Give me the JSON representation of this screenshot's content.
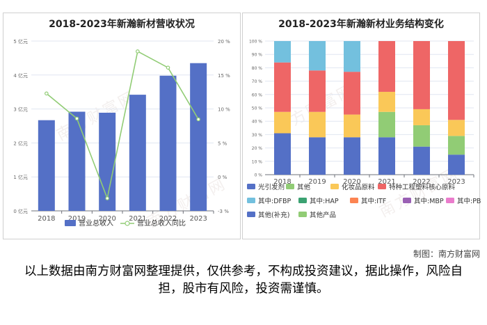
{
  "watermark": "南方财富网",
  "credit": "制图：南方财富网",
  "disclaimer": "以上数据由南方财富网整理提供，仅供参考，不构成投资建议，据此操作，风险自担，股市有风险，投资需谨慎。",
  "chart_data": [
    {
      "type": "bar",
      "title": "2018-2023年新瀚新材营收状况",
      "categories": [
        "2018",
        "2019",
        "2020",
        "2021",
        "2022",
        "2023"
      ],
      "series": [
        {
          "name": "营业总收入",
          "type": "bar",
          "axis": "left",
          "color": "#5470c6",
          "values": [
            2.67,
            2.92,
            2.89,
            3.42,
            3.98,
            4.35
          ]
        },
        {
          "name": "营业总收入同比",
          "type": "line",
          "axis": "right",
          "color": "#91cc75",
          "values": [
            12.9,
            9.5,
            -1.3,
            18.6,
            16.4,
            9.4
          ]
        }
      ],
      "left_axis": {
        "ylim": [
          0,
          5
        ],
        "ticks": [
          "0 亿元",
          "1 亿元",
          "2 亿元",
          "3 亿元",
          "4 亿元",
          "5 亿元"
        ]
      },
      "right_axis": {
        "ylim": [
          -3,
          20
        ],
        "ticks": [
          "-3 %",
          "0 %",
          "5 %",
          "10 %",
          "15 %",
          "20 %"
        ]
      },
      "legend": [
        {
          "label": "营业总收入",
          "color": "#5470c6",
          "kind": "bar"
        },
        {
          "label": "营业总收入同比",
          "color": "#91cc75",
          "kind": "line"
        }
      ]
    },
    {
      "type": "bar",
      "stacked": true,
      "title": "2018-2023年新瀚新材业务结构变化",
      "categories": [
        "2018",
        "2019",
        "2020",
        "2021",
        "2022",
        "2023"
      ],
      "ylim": [
        0,
        100
      ],
      "ticks": [
        "0 %",
        "10 %",
        "20 %",
        "30 %",
        "40 %",
        "50 %",
        "60 %",
        "70 %",
        "80 %",
        "90 %",
        "100 %"
      ],
      "series": [
        {
          "name": "光引发剂",
          "color": "#5470c6",
          "values": [
            31,
            28,
            28,
            28,
            21,
            15
          ]
        },
        {
          "name": "其他",
          "color": "#91cc75",
          "values": [
            0,
            0,
            0,
            19,
            16,
            14
          ]
        },
        {
          "name": "化妆品原料",
          "color": "#fac858",
          "values": [
            16,
            19,
            17,
            15,
            12,
            12
          ]
        },
        {
          "name": "特种工程塑料核心原料",
          "color": "#ee6666",
          "values": [
            37,
            31,
            32,
            38,
            51,
            59
          ]
        },
        {
          "name": "其中:DFBP",
          "color": "#73c0de",
          "values": [
            16,
            22,
            23,
            0,
            0,
            0
          ]
        }
      ],
      "legend": [
        {
          "label": "光引发剂",
          "color": "#5470c6"
        },
        {
          "label": "其他",
          "color": "#91cc75"
        },
        {
          "label": "化妆品原料",
          "color": "#fac858"
        },
        {
          "label": "特种工程塑料核心原料",
          "color": "#ee6666"
        },
        {
          "label": "其中:DFBP",
          "color": "#73c0de"
        },
        {
          "label": "其中:HAP",
          "color": "#3ba272"
        },
        {
          "label": "其中:ITF",
          "color": "#fc8452"
        },
        {
          "label": "其中:MBP",
          "color": "#9a60b4"
        },
        {
          "label": "其中:PBZ",
          "color": "#ea7ccc"
        },
        {
          "label": "其他(补充)",
          "color": "#5470c6"
        },
        {
          "label": "其他产品",
          "color": "#91cc75"
        }
      ]
    }
  ]
}
